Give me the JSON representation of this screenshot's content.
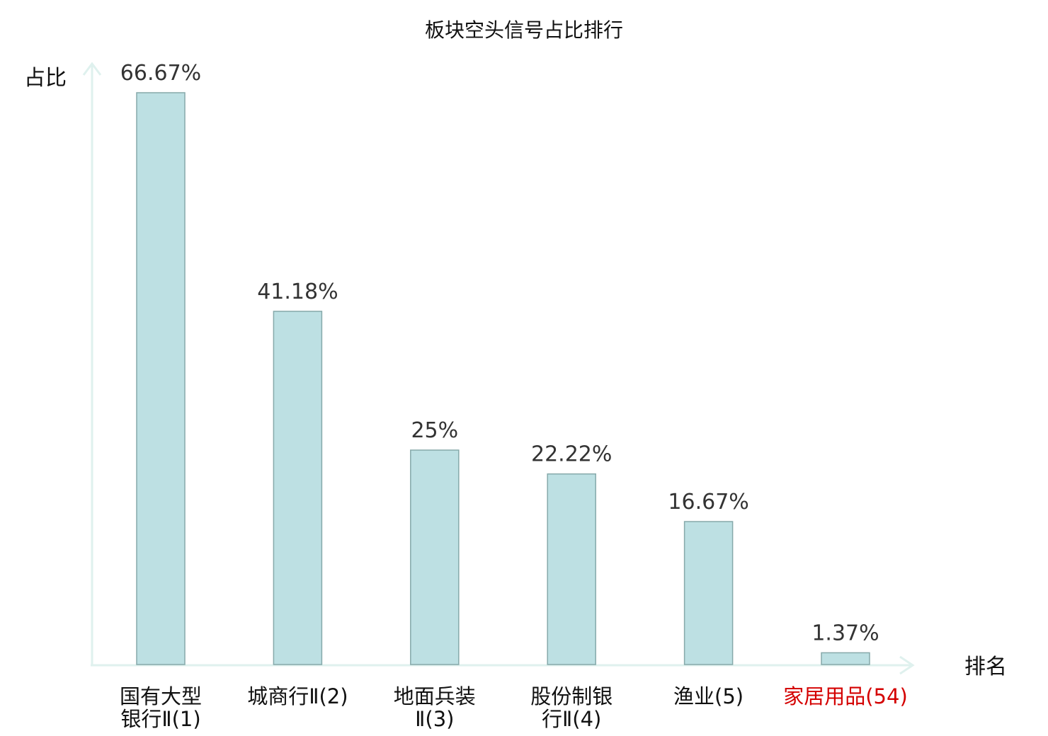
{
  "chart_data": {
    "type": "bar",
    "title": "板块空头信号占比排行",
    "ylabel": "占比",
    "xlabel": "排名",
    "ylim": [
      0,
      70
    ],
    "grid": false,
    "categories": [
      {
        "name": "国有大型银行Ⅱ",
        "rank": "(1)",
        "lines": [
          "国有大型",
          "银行Ⅱ(1)"
        ],
        "highlight": false
      },
      {
        "name": "城商行Ⅱ",
        "rank": "(2)",
        "lines": [
          "城商行Ⅱ(2)"
        ],
        "highlight": false
      },
      {
        "name": "地面兵装Ⅱ",
        "rank": "(3)",
        "lines": [
          "地面兵装",
          "Ⅱ(3)"
        ],
        "highlight": false
      },
      {
        "name": "股份制银行Ⅱ",
        "rank": "(4)",
        "lines": [
          "股份制银",
          "行Ⅱ(4)"
        ],
        "highlight": false
      },
      {
        "name": "渔业",
        "rank": "(5)",
        "lines": [
          "渔业(5)"
        ],
        "highlight": false
      },
      {
        "name": "家居用品",
        "rank": "(54)",
        "lines": [
          "家居用品(54)"
        ],
        "highlight": true
      }
    ],
    "values": [
      66.67,
      41.18,
      25,
      22.22,
      16.67,
      1.37
    ],
    "value_labels": [
      "66.67%",
      "41.18%",
      "25%",
      "22.22%",
      "16.67%",
      "1.37%"
    ]
  },
  "colors": {
    "bar_fill": "#bde0e3",
    "bar_stroke": "#86a9aa",
    "axis": "#dff1ee",
    "text": "#111111",
    "value_text": "#333333",
    "highlight": "#d40000"
  }
}
